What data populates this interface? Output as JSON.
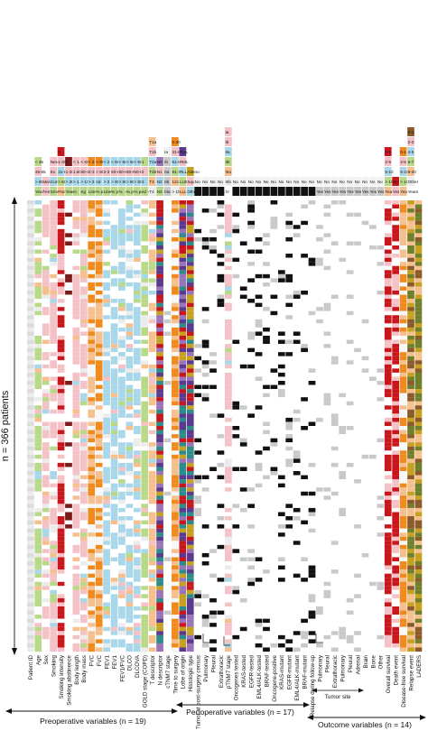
{
  "figure": {
    "patients_label": "n = 366 patients",
    "n_patients": 366,
    "tumor_site_label": "Tumor site"
  },
  "groups": [
    {
      "label": "Preoperative variables (n = 19)"
    },
    {
      "label": "Perioperative variables (n = 17)"
    },
    {
      "label": "Outcome variables (n = 14)"
    }
  ],
  "colors": {
    "pink": "#f4c2c6",
    "blue": "#a9d7ea",
    "green": "#b9d98a",
    "orange": "#f08a1c",
    "red": "#c8161d",
    "dark_red": "#7a1a1a",
    "purple": "#5b3a8e",
    "violet": "#9a74b8",
    "gold": "#c8a020",
    "grey": "#c9c9c9",
    "light_grey": "#ececec",
    "black": "#111111",
    "teal": "#2e8b8b",
    "brown": "#8b5a2b",
    "olive": "#6f7f2a",
    "peach": "#f6c08e"
  },
  "variables": [
    {
      "label": "Patient ID",
      "color": "#e8e8e8",
      "keys": []
    },
    {
      "label": "Age",
      "color": "#b9d98a",
      "keys": [
        "< 45",
        "45-65",
        "> 65",
        "Years"
      ]
    },
    {
      "label": "Sex",
      "color": "#f4c2c6",
      "keys": [
        "Male",
        "Female"
      ]
    },
    {
      "label": "Smoking",
      "color": "#f4c2c6",
      "keys": [
        "Never",
        "Ex",
        "Current",
        "Smoker"
      ]
    },
    {
      "label": "Smoking intensity",
      "color": "#c8161d",
      "keys": [
        "0",
        "1-30",
        "31-60",
        "> 60",
        "Pack-years"
      ]
    },
    {
      "label": "Smoking abstinence",
      "color": "#7a1a1a",
      "keys": [
        "0",
        "1-20",
        "> 20",
        "Years"
      ]
    },
    {
      "label": "Body length",
      "color": "#f4c2c6",
      "keys": [
        "< 1.60",
        "1.60-1.80",
        "> 1.80",
        "m"
      ]
    },
    {
      "label": "Body mass",
      "color": "#f4c2c6",
      "keys": [
        "< 60",
        "60-100",
        "> 100",
        "Kg"
      ]
    },
    {
      "label": "FVC",
      "color": "#f08a1c",
      "keys": [
        "< 2",
        "2-3",
        "> 3",
        "Liter"
      ]
    },
    {
      "label": "FVC",
      "color": "#f08a1c",
      "keys": [
        "< 80",
        "> 80",
        "nd",
        "% predicted"
      ]
    },
    {
      "label": "FEV1",
      "color": "#a9d7ea",
      "keys": [
        "< 2",
        "2-3",
        "> 3",
        "Liter"
      ]
    },
    {
      "label": "FEV1",
      "color": "#a9d7ea",
      "keys": [
        "< 50",
        "50-80",
        "> 80",
        "% predicted"
      ]
    },
    {
      "label": "FEV1/FVC",
      "color": "#a9d7ea",
      "keys": [
        "< 50",
        "50-80",
        "> 80",
        "%"
      ]
    },
    {
      "label": "DLCO",
      "color": "#a9d7ea",
      "keys": [
        "< 50",
        "50-80",
        "> 80",
        "% predicted"
      ]
    },
    {
      "label": "DLCOVA",
      "color": "#a9d7ea",
      "keys": [
        "< 50",
        "50-80",
        "> 80",
        "% predicted"
      ]
    },
    {
      "label": "GOLD stage (COPD)",
      "color": "#b9d98a",
      "keys": [
        "1",
        "2",
        "3",
        "nd"
      ]
    },
    {
      "label": "T descriptor",
      "color": "#f6c08e",
      "keys": [
        "T1a",
        "T1b",
        "T2a",
        "T2b",
        "T3",
        "T4"
      ]
    },
    {
      "label": "N descriptor",
      "color": "#9a74b8",
      "keys": [
        "N0",
        "N1",
        "N2",
        "N3"
      ]
    },
    {
      "label": "cTNM7 stage",
      "color": "#c9c9c9",
      "keys": [
        "Ia",
        "Ib",
        "IIa",
        "IIb",
        "IIIa"
      ]
    },
    {
      "label": "Time to surgery",
      "color": "#f08a1c",
      "keys": [
        "0-30",
        "31-60",
        "61-90",
        "91-120",
        "121-150",
        "> 150"
      ]
    },
    {
      "label": "Lobe of origin",
      "color": "#5b3a8e",
      "keys": [
        "RUL",
        "RML",
        "RLL",
        "LUL",
        "LLL"
      ]
    },
    {
      "label": "Histologic type",
      "color": "#c8a020",
      "keys": [
        "Adeno",
        "Squam",
        "Other"
      ]
    },
    {
      "label": "Tumor at post-surgery census",
      "color": "#111111",
      "keys": [
        "No",
        "Yes"
      ]
    },
    {
      "label": "Pulmonary",
      "color": "#111111",
      "keys": [
        "No",
        "Yes"
      ]
    },
    {
      "label": "Pleural",
      "color": "#111111",
      "keys": [
        "No",
        "Yes"
      ]
    },
    {
      "label": "Extrathoracic",
      "color": "#111111",
      "keys": [
        "No",
        "Yes"
      ]
    },
    {
      "label": "pTNM7 stage",
      "color": "#f4c2c6",
      "keys": [
        "Ia",
        "Ib",
        "IIa",
        "IIb",
        "IIIa",
        "IIIb",
        "IV"
      ]
    },
    {
      "label": "Oncogenes tested",
      "color": "#111111",
      "keys": [
        "No",
        "Yes"
      ]
    },
    {
      "label": "KRAS-tested",
      "color": "#111111",
      "keys": [
        "No",
        "Yes"
      ]
    },
    {
      "label": "EGFR-tested",
      "color": "#111111",
      "keys": [
        "No",
        "Yes"
      ]
    },
    {
      "label": "EML4/ALK-tested",
      "color": "#111111",
      "keys": [
        "No",
        "Yes"
      ]
    },
    {
      "label": "BRAF-tested",
      "color": "#111111",
      "keys": [
        "No",
        "Yes"
      ]
    },
    {
      "label": "Oncogene-positive",
      "color": "#111111",
      "keys": [
        "No",
        "Yes"
      ]
    },
    {
      "label": "KRAS-mutant",
      "color": "#111111",
      "keys": [
        "No",
        "Yes"
      ]
    },
    {
      "label": "EGFR-mutant",
      "color": "#111111",
      "keys": [
        "No",
        "Yes"
      ]
    },
    {
      "label": "EML4/ALK-mutant",
      "color": "#111111",
      "keys": [
        "No",
        "Yes"
      ]
    },
    {
      "label": "BRAF-mutant",
      "color": "#111111",
      "keys": [
        "No",
        "Yes"
      ]
    },
    {
      "label": "Relapse during follow-up",
      "color": "#111111",
      "keys": [
        "No",
        "Yes"
      ]
    },
    {
      "label": "Pulmonary",
      "color": "#c9c9c9",
      "keys": [
        "No",
        "Yes"
      ]
    },
    {
      "label": "Pleural",
      "color": "#c9c9c9",
      "keys": [
        "No",
        "Yes"
      ]
    },
    {
      "label": "Extrathoracic",
      "color": "#c9c9c9",
      "keys": [
        "No",
        "Yes"
      ]
    },
    {
      "label": "Pulmonary",
      "color": "#c9c9c9",
      "keys": [
        "No",
        "Yes"
      ]
    },
    {
      "label": "Pleural",
      "color": "#c9c9c9",
      "keys": [
        "No",
        "Yes"
      ]
    },
    {
      "label": "Adrenal",
      "color": "#c9c9c9",
      "keys": [
        "No",
        "Yes"
      ]
    },
    {
      "label": "Brain",
      "color": "#c9c9c9",
      "keys": [
        "No",
        "Yes"
      ]
    },
    {
      "label": "Bone",
      "color": "#c9c9c9",
      "keys": [
        "No",
        "Yes"
      ]
    },
    {
      "label": "Other",
      "color": "#c9c9c9",
      "keys": [
        "No",
        "Yes"
      ]
    },
    {
      "label": "Overall survival",
      "color": "#c8161d",
      "keys": [
        "0-1",
        "2-5",
        "5-10",
        "> 10",
        "Years"
      ]
    },
    {
      "label": "Death event",
      "color": "#c8161d",
      "keys": [
        "No",
        "Yes"
      ]
    },
    {
      "label": "Disease-free survival",
      "color": "#f08a1c",
      "keys": [
        "0-1",
        "2-5",
        "5-10",
        "> 10",
        "Years"
      ]
    },
    {
      "label": "Relapse event",
      "color": "#8b5a2b",
      "keys": [
        "0-1",
        "2-3",
        "4-5",
        "6-7",
        "8-20",
        "Other",
        "Years"
      ]
    },
    {
      "label": "LADERS",
      "color": "#6f7f2a",
      "keys": []
    }
  ]
}
